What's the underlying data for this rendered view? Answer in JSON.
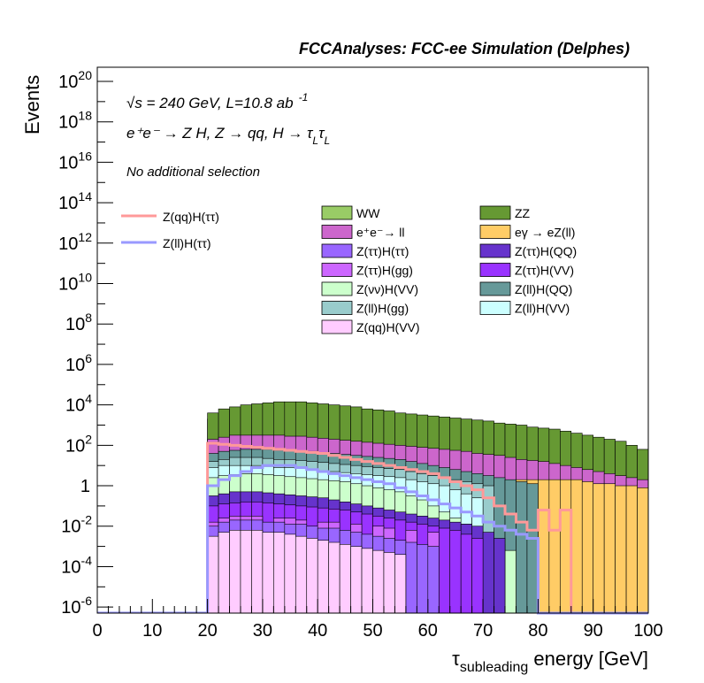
{
  "header": {
    "title": "FCCAnalyses: FCC-ee Simulation (Delphes)"
  },
  "annotations": {
    "energy_prefix": "√s = 240 GeV, L=10.8 ab",
    "lumi_exp": "-1",
    "process": "e⁺e⁻ → Z H, Z → qq, H → τ",
    "tau_sub": "L",
    "tau_sym": "τ",
    "selection": "No additional selection"
  },
  "colors": {
    "WW": "#99cc66",
    "ZZ": "#669933",
    "ee_ll": "#cc66cc",
    "egamma_eZll": "#ffcc66",
    "Ztautau_Htautau": "#9966ff",
    "Ztautau_HQQ": "#6633cc",
    "Ztautau_Hgg": "#cc66ff",
    "Ztautau_HVV": "#9933ff",
    "Znunu_HVV": "#ccffcc",
    "Zll_HQQ": "#669999",
    "Zll_Hgg": "#99cccc",
    "Zll_HVV": "#ccffff",
    "Zqq_HVV": "#ffccff",
    "sig_qq": "#ff9999",
    "sig_ll": "#9999ff"
  },
  "chart_data": {
    "type": "histogram-stacked",
    "title": "FCCAnalyses: FCC-ee Simulation (Delphes)",
    "xlabel": "τ_subleading energy [GeV]",
    "xlabel_main": "τ",
    "xlabel_sub": "subleading",
    "xlabel_rest": " energy [GeV]",
    "ylabel": "Events",
    "xlim": [
      0,
      100
    ],
    "ylim_log10": [
      -6.3,
      20.7
    ],
    "y_scale": "log",
    "xticks": [
      "0",
      "10",
      "20",
      "30",
      "40",
      "50",
      "60",
      "70",
      "80",
      "90",
      "100"
    ],
    "yticks": [
      {
        "exp": -6,
        "label": "10",
        "sup": "-6"
      },
      {
        "exp": -4,
        "label": "10",
        "sup": "-4"
      },
      {
        "exp": -2,
        "label": "10",
        "sup": "-2"
      },
      {
        "exp": 0,
        "label": "1",
        "sup": ""
      },
      {
        "exp": 2,
        "label": "10",
        "sup": "2"
      },
      {
        "exp": 4,
        "label": "10",
        "sup": "4"
      },
      {
        "exp": 6,
        "label": "10",
        "sup": "6"
      },
      {
        "exp": 8,
        "label": "10",
        "sup": "8"
      },
      {
        "exp": 10,
        "label": "10",
        "sup": "10"
      },
      {
        "exp": 12,
        "label": "10",
        "sup": "12"
      },
      {
        "exp": 14,
        "label": "10",
        "sup": "14"
      },
      {
        "exp": 16,
        "label": "10",
        "sup": "16"
      },
      {
        "exp": 18,
        "label": "10",
        "sup": "18"
      },
      {
        "exp": 20,
        "label": "10",
        "sup": "20"
      }
    ],
    "bins_x_from": 20,
    "bin_width": 2,
    "background_stack_log10_tops": [
      {
        "name": "WW",
        "color_key": "WW",
        "values": [
          3.3,
          3.5,
          3.7,
          3.8,
          3.9,
          3.95,
          4.0,
          4.0,
          4.0,
          3.95,
          3.9,
          3.85,
          3.8,
          3.7,
          3.65,
          3.55,
          3.45,
          3.35,
          3.25,
          3.1,
          3.0,
          2.85,
          2.7,
          2.5,
          2.3,
          2.1,
          1.9,
          1.7,
          1.5,
          1.3,
          1.1,
          0.9,
          0.7,
          0.5,
          0.3,
          0.1,
          -0.1,
          -0.3,
          -0.5,
          -0.7
        ]
      },
      {
        "name": "ZZ",
        "color_key": "ZZ",
        "values": [
          3.6,
          3.8,
          3.9,
          4.0,
          4.05,
          4.1,
          4.15,
          4.15,
          4.15,
          4.1,
          4.05,
          4.0,
          3.95,
          3.9,
          3.8,
          3.75,
          3.7,
          3.6,
          3.55,
          3.5,
          3.45,
          3.4,
          3.35,
          3.3,
          3.25,
          3.2,
          3.1,
          3.05,
          3.0,
          2.9,
          2.85,
          2.8,
          2.7,
          2.6,
          2.5,
          2.4,
          2.3,
          2.2,
          2.0,
          1.8
        ]
      },
      {
        "name": "e⁺e⁻→ ll",
        "color_key": "ee_ll",
        "values": [
          2.3,
          2.4,
          2.5,
          2.5,
          2.5,
          2.5,
          2.5,
          2.45,
          2.45,
          2.4,
          2.35,
          2.3,
          2.25,
          2.2,
          2.15,
          2.1,
          2.05,
          2.0,
          1.95,
          1.9,
          1.85,
          1.8,
          1.75,
          1.7,
          1.6,
          1.55,
          1.5,
          1.4,
          1.3,
          1.25,
          1.2,
          1.1,
          1.0,
          0.9,
          0.8,
          0.7,
          0.6,
          0.5,
          0.4,
          0.3
        ]
      },
      {
        "name": "eγ → eZ(ll)",
        "color_key": "egamma_eZll",
        "values": [
          -6.3,
          -6.3,
          -6.3,
          -6.3,
          -6.3,
          -6.3,
          -6.3,
          -6.3,
          -6.3,
          -6.3,
          -6.3,
          -6.3,
          -6.3,
          -6.3,
          -6.3,
          -6.3,
          -6.3,
          -6.3,
          -6.3,
          -6.3,
          -6.3,
          -6.3,
          -6.3,
          -6.3,
          0.2,
          0.2,
          0.2,
          0.2,
          0.3,
          0.3,
          0.3,
          0.3,
          0.3,
          0.3,
          0.2,
          0.1,
          0.1,
          0.0,
          0.0,
          -0.1
        ]
      },
      {
        "name": "Z(ll)H(QQ)",
        "color_key": "Zll_HQQ",
        "values": [
          1.6,
          1.7,
          1.75,
          1.8,
          1.8,
          1.8,
          1.75,
          1.75,
          1.7,
          1.7,
          1.65,
          1.6,
          1.55,
          1.5,
          1.45,
          1.4,
          1.35,
          1.3,
          1.2,
          1.1,
          1.0,
          0.9,
          0.8,
          0.7,
          0.6,
          0.5,
          0.4,
          0.3,
          0.2,
          0.1,
          -6.3,
          -6.3,
          -6.3,
          -6.3,
          -6.3,
          -6.3,
          -6.3,
          -6.3,
          -6.3,
          -6.3
        ]
      },
      {
        "name": "Z(ll)H(gg)",
        "color_key": "Zll_Hgg",
        "values": [
          1.2,
          1.3,
          1.4,
          1.4,
          1.4,
          1.35,
          1.3,
          1.3,
          1.25,
          1.2,
          1.15,
          1.1,
          1.05,
          1.0,
          0.95,
          0.9,
          0.85,
          0.8,
          0.7,
          0.6,
          0.5,
          0.4,
          0.3,
          0.2,
          0.1,
          0.0,
          -6.3,
          -6.3,
          -6.3,
          -6.3,
          -6.3,
          -6.3,
          -6.3,
          -6.3,
          -6.3,
          -6.3,
          -6.3,
          -6.3,
          -6.3,
          -6.3
        ]
      },
      {
        "name": "Z(ll)H(VV)",
        "color_key": "Zll_HVV",
        "values": [
          0.9,
          1.0,
          1.0,
          1.0,
          1.0,
          0.95,
          0.9,
          0.9,
          0.85,
          0.8,
          0.75,
          0.7,
          0.65,
          0.6,
          0.55,
          0.5,
          0.45,
          0.4,
          0.3,
          0.2,
          0.1,
          0.0,
          -0.2,
          -0.4,
          -0.6,
          -6.3,
          -6.3,
          -6.3,
          -6.3,
          -6.3,
          -6.3,
          -6.3,
          -6.3,
          -6.3,
          -6.3,
          -6.3,
          -6.3,
          -6.3,
          -6.3,
          -6.3
        ]
      },
      {
        "name": "Z(νν)H(VV)",
        "color_key": "Znunu_HVV",
        "values": [
          0.4,
          0.5,
          0.55,
          0.6,
          0.6,
          0.55,
          0.5,
          0.45,
          0.4,
          0.35,
          0.3,
          0.25,
          0.2,
          0.1,
          0.0,
          -0.1,
          -0.2,
          -0.3,
          -0.5,
          -0.7,
          -1.0,
          -1.3,
          -1.6,
          -1.9,
          -2.3,
          -2.6,
          -2.9,
          -3.2,
          -6.3,
          -6.3,
          -6.3,
          -6.3,
          -6.3,
          -6.3,
          -6.3,
          -6.3,
          -6.3,
          -6.3,
          -6.3,
          -6.3
        ]
      },
      {
        "name": "Z(ττ)H(QQ)",
        "color_key": "Ztautau_HQQ",
        "values": [
          -0.5,
          -0.4,
          -0.3,
          -0.3,
          -0.3,
          -0.35,
          -0.4,
          -0.45,
          -0.5,
          -0.55,
          -0.6,
          -0.7,
          -0.8,
          -0.9,
          -1.0,
          -1.1,
          -1.2,
          -1.3,
          -1.4,
          -1.5,
          -1.6,
          -1.7,
          -1.8,
          -1.9,
          -2.0,
          -2.3,
          -2.6,
          -6.3,
          -6.3,
          -6.3,
          -6.3,
          -6.3,
          -6.3,
          -6.3,
          -6.3,
          -6.3,
          -6.3,
          -6.3,
          -6.3,
          -6.3
        ]
      },
      {
        "name": "Z(ττ)H(VV)",
        "color_key": "Ztautau_HVV",
        "values": [
          -1.0,
          -0.9,
          -0.85,
          -0.8,
          -0.8,
          -0.85,
          -0.9,
          -0.95,
          -1.0,
          -1.05,
          -1.1,
          -1.15,
          -1.2,
          -1.3,
          -1.4,
          -1.5,
          -1.6,
          -1.7,
          -1.8,
          -1.9,
          -2.0,
          -2.1,
          -2.2,
          -2.4,
          -2.6,
          -6.3,
          -6.3,
          -6.3,
          -6.3,
          -6.3,
          -6.3,
          -6.3,
          -6.3,
          -6.3,
          -6.3,
          -6.3,
          -6.3,
          -6.3,
          -6.3,
          -6.3
        ]
      },
      {
        "name": "Z(ττ)H(gg)",
        "color_key": "Ztautau_Hgg",
        "values": [
          -1.8,
          -1.6,
          -1.5,
          -1.5,
          -1.5,
          -6.3,
          -1.6,
          -1.6,
          -1.7,
          -6.3,
          -1.8,
          -1.8,
          -6.3,
          -1.9,
          -6.3,
          -2.0,
          -2.1,
          -6.3,
          -2.2,
          -6.3,
          -2.3,
          -6.3,
          -6.3,
          -6.3,
          -6.3,
          -6.3,
          -6.3,
          -6.3,
          -6.3,
          -6.3,
          -6.3,
          -6.3,
          -6.3,
          -6.3,
          -6.3,
          -6.3,
          -6.3,
          -6.3,
          -6.3,
          -6.3
        ]
      },
      {
        "name": "Z(ττ)H(ττ)",
        "color_key": "Ztautau_Htautau",
        "values": [
          -2.0,
          -1.8,
          -1.7,
          -1.7,
          -1.7,
          -1.8,
          -1.8,
          -1.9,
          -1.9,
          -2.0,
          -2.1,
          -2.1,
          -2.2,
          -2.3,
          -2.4,
          -2.5,
          -2.6,
          -2.7,
          -2.8,
          -2.9,
          -3.0,
          -6.3,
          -6.3,
          -6.3,
          -6.3,
          -6.3,
          -6.3,
          -6.3,
          -6.3,
          -6.3,
          -6.3,
          -6.3,
          -6.3,
          -6.3,
          -6.3,
          -6.3,
          -6.3,
          -6.3,
          -6.3,
          -6.3
        ]
      },
      {
        "name": "Z(qq)H(VV)",
        "color_key": "Zqq_HVV",
        "values": [
          -2.5,
          -2.3,
          -2.2,
          -2.2,
          -2.2,
          -2.3,
          -2.3,
          -2.4,
          -2.5,
          -2.6,
          -2.7,
          -2.8,
          -2.9,
          -3.0,
          -3.1,
          -3.2,
          -3.3,
          -3.4,
          -6.3,
          -6.3,
          -6.3,
          -6.3,
          -6.3,
          -6.3,
          -6.3,
          -6.3,
          -6.3,
          -6.3,
          -6.3,
          -6.3,
          -6.3,
          -6.3,
          -6.3,
          -6.3,
          -6.3,
          -6.3,
          -6.3,
          -6.3,
          -6.3,
          -6.3
        ]
      }
    ],
    "stack_order_top_to_bottom": [
      "WW",
      "ZZ",
      "e⁺e⁻→ ll",
      "eγ → eZ(ll)",
      "Z(ll)H(QQ)",
      "Z(ll)H(gg)",
      "Z(ll)H(VV)",
      "Z(νν)H(VV)",
      "Z(ττ)H(QQ)",
      "Z(ττ)H(VV)",
      "Z(ττ)H(gg)",
      "Z(ττ)H(ττ)",
      "Z(qq)H(VV)"
    ],
    "signal_series": [
      {
        "name": "Z(qq)H(ττ)",
        "color_key": "sig_qq",
        "values_log10": [
          2.1,
          2.05,
          2.0,
          1.95,
          1.9,
          1.85,
          1.8,
          1.75,
          1.7,
          1.65,
          1.6,
          1.5,
          1.4,
          1.3,
          1.2,
          1.1,
          1.0,
          0.9,
          0.8,
          0.7,
          0.6,
          0.4,
          0.2,
          0.0,
          -0.2,
          -0.6,
          -1.0,
          -1.4,
          -1.8,
          -2.2,
          -1.2,
          -2.2,
          -1.2,
          -6.3,
          -6.3,
          -6.3,
          -6.3,
          -6.3,
          -6.3,
          -6.3
        ]
      },
      {
        "name": "Z(ll)H(ττ)",
        "color_key": "sig_ll",
        "values_log10": [
          0.0,
          0.3,
          0.5,
          0.7,
          0.9,
          1.0,
          1.0,
          1.0,
          0.9,
          0.8,
          0.7,
          0.6,
          0.5,
          0.4,
          0.3,
          0.2,
          0.1,
          -0.1,
          -0.3,
          -0.5,
          -0.7,
          -0.9,
          -1.1,
          -1.3,
          -1.5,
          -1.8,
          -2.0,
          -2.2,
          -2.4,
          -2.6,
          -6.3,
          -6.3,
          -6.3,
          -6.3,
          -6.3,
          -6.3,
          -6.3,
          -6.3,
          -6.3,
          -6.3
        ]
      }
    ],
    "legend": {
      "signals": [
        "Z(qq)H(ττ)",
        "Z(ll)H(ττ)"
      ],
      "backgrounds_col1": [
        "WW",
        "e⁺e⁻→ ll",
        "Z(ττ)H(ττ)",
        "Z(ττ)H(gg)",
        "Z(νν)H(VV)",
        "Z(ll)H(gg)",
        "Z(qq)H(VV)"
      ],
      "backgrounds_col2": [
        "ZZ",
        "eγ → eZ(ll)",
        "Z(ττ)H(QQ)",
        "Z(ττ)H(VV)",
        "Z(ll)H(QQ)",
        "Z(ll)H(VV)"
      ],
      "bg_color_keys_col1": [
        "WW",
        "ee_ll",
        "Ztautau_Htautau",
        "Ztautau_Hgg",
        "Znunu_HVV",
        "Zll_Hgg",
        "Zqq_HVV"
      ],
      "bg_color_keys_col2": [
        "ZZ",
        "egamma_eZll",
        "Ztautau_HQQ",
        "Ztautau_HVV",
        "Zll_HQQ",
        "Zll_HVV"
      ],
      "placement": "top"
    }
  }
}
